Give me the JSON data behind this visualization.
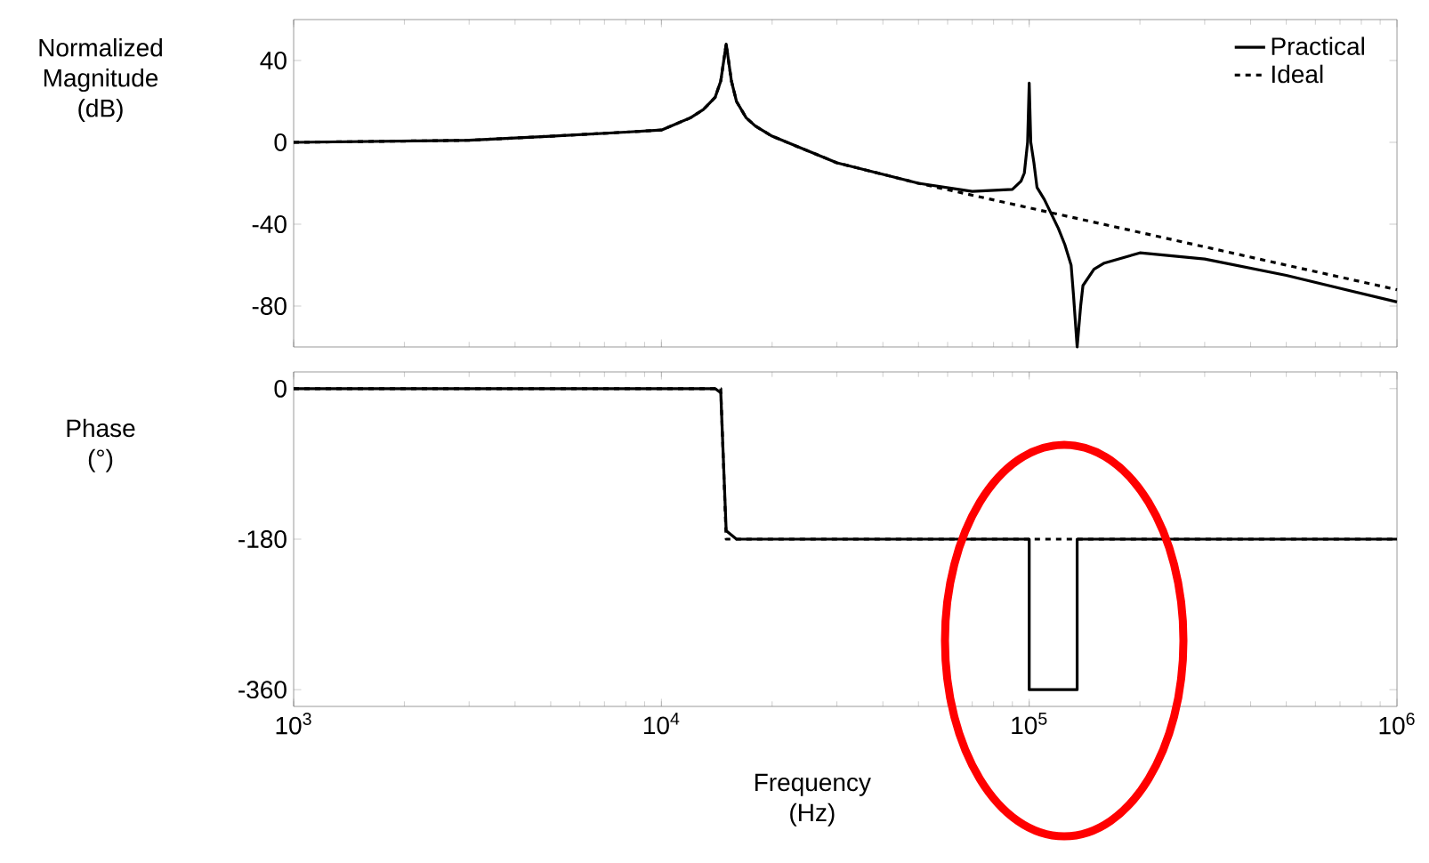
{
  "chart_data": [
    {
      "type": "line",
      "ylabel": "Normalized Magnitude (dB)",
      "log": "x",
      "xlim": [
        1000,
        1000000
      ],
      "ylim": [
        -100,
        60
      ],
      "xticks": [
        {
          "value": 1000,
          "label": null
        },
        {
          "value": 10000,
          "label": null
        },
        {
          "value": 100000,
          "label": null
        },
        {
          "value": 1000000,
          "label": null
        }
      ],
      "yticks": [
        40,
        0,
        -40,
        -80
      ],
      "tick_labels": "y",
      "grid": false,
      "legend": "top right",
      "marker": "none",
      "series": [
        {
          "name": "Practical",
          "color": "#000000",
          "line_style": "solid",
          "x": [
            1000,
            3000,
            5000,
            8000,
            10000,
            12000,
            13000,
            14000,
            14500,
            15000,
            15500,
            16000,
            17000,
            18000,
            20000,
            30000,
            50000,
            70000,
            90000,
            95000,
            97000,
            99000,
            100000,
            101000,
            103000,
            105000,
            110000,
            120000,
            125000,
            130000,
            132000,
            135000,
            138000,
            140000,
            150000,
            160000,
            200000,
            300000,
            500000,
            1000000
          ],
          "values": [
            0,
            1,
            3,
            5,
            6,
            12,
            16,
            22,
            30,
            48,
            30,
            20,
            12,
            8,
            3,
            -10,
            -20,
            -24,
            -23,
            -19,
            -15,
            0,
            29,
            0,
            -10,
            -22,
            -28,
            -42,
            -50,
            -60,
            -75,
            -100,
            -80,
            -70,
            -62,
            -59,
            -54,
            -57,
            -65,
            -78
          ]
        },
        {
          "name": "Ideal",
          "color": "#000000",
          "line_style": "dashed",
          "x": [
            1000,
            3000,
            5000,
            8000,
            10000,
            12000,
            13000,
            14000,
            14500,
            15000,
            15500,
            16000,
            17000,
            18000,
            20000,
            30000,
            50000,
            100000,
            200000,
            500000,
            1000000
          ],
          "values": [
            0,
            1,
            3,
            5,
            6,
            12,
            16,
            22,
            30,
            48,
            30,
            20,
            12,
            8,
            3,
            -10,
            -20,
            -32,
            -44,
            -60,
            -72
          ]
        }
      ]
    },
    {
      "type": "line",
      "ylabel": "Phase (°)",
      "xlabel": "Frequency (Hz)",
      "log": "x",
      "xlim": [
        1000,
        1000000
      ],
      "ylim": [
        -380,
        20
      ],
      "xticks": [
        {
          "value": 1000,
          "label": "10$^{3}$"
        },
        {
          "value": 10000,
          "label": "10$^{4}$"
        },
        {
          "value": 100000,
          "label": "10$^{5}$"
        },
        {
          "value": 1000000,
          "label": "10$^{6}$"
        }
      ],
      "yticks": [
        0,
        -180,
        -360
      ],
      "grid": false,
      "legend": false,
      "marker": "none",
      "series": [
        {
          "color": "#000000",
          "line_style": "dashed",
          "x": [
            1000,
            14500,
            15000,
            1000000
          ],
          "values": [
            0,
            0,
            -180,
            -180
          ]
        },
        {
          "color": "#000000",
          "line_style": "solid",
          "x": [
            1000,
            14000,
            14500,
            15000,
            16000,
            100000,
            100000,
            135000,
            135000,
            1000000
          ],
          "values": [
            0,
            0,
            -5,
            -170,
            -180,
            -180,
            -360,
            -360,
            -180,
            -180
          ]
        }
      ]
    }
  ]
}
